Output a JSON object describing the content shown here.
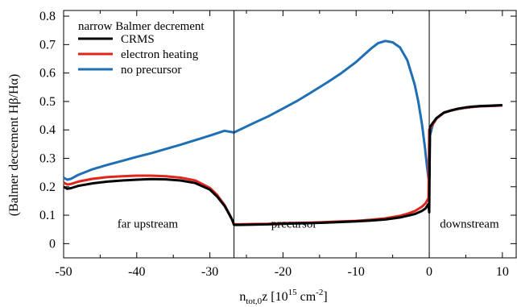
{
  "chart_data": {
    "type": "line",
    "title": "",
    "xlabel": {
      "base": "n",
      "sub": "tot,0",
      "mid": "z [10",
      "sup1": "15",
      "mid2": " cm",
      "sup2": "-2",
      "end": "]"
    },
    "ylabel": "(Balmer decrement Hβ/Hα)",
    "xlim": [
      -50,
      12
    ],
    "ylim": [
      -0.05,
      0.82
    ],
    "xticks": [
      -50,
      -40,
      -30,
      -20,
      -10,
      0,
      10
    ],
    "yticks": [
      0,
      0.1,
      0.2,
      0.3,
      0.4,
      0.5,
      0.6,
      0.7,
      0.8
    ],
    "xtick_labels": [
      "-50",
      "-40",
      "-30",
      "-20",
      "-10",
      "0",
      "10"
    ],
    "ytick_labels": [
      "0",
      "0.1",
      "0.2",
      "0.3",
      "0.4",
      "0.5",
      "0.6",
      "0.7",
      "0.8"
    ],
    "legend": {
      "title": "narrow Balmer decrement",
      "placement": "top-left"
    },
    "vlines": [
      -26.7,
      0
    ],
    "regions": [
      {
        "label": "far upstream",
        "x": -38.5,
        "y": 0.07
      },
      {
        "label": "precursor",
        "x": -18.5,
        "y": 0.07
      },
      {
        "label": "downstream",
        "x": 5.5,
        "y": 0.07
      }
    ],
    "series": [
      {
        "name": "no precursor",
        "color": "#1f6fb4",
        "x": [
          -50,
          -49.5,
          -49,
          -48,
          -46,
          -44,
          -42,
          -40,
          -38,
          -36,
          -34,
          -32,
          -30,
          -28,
          -26.7,
          -24,
          -22,
          -20,
          -18,
          -16,
          -14,
          -12,
          -10,
          -8,
          -7,
          -6,
          -5,
          -4,
          -3,
          -2,
          -1.5,
          -1,
          -0.6,
          -0.3,
          -0.1,
          0,
          0.1,
          0.5,
          1,
          2,
          3,
          4,
          5,
          6,
          7,
          8,
          9,
          10
        ],
        "y": [
          0.232,
          0.225,
          0.228,
          0.242,
          0.262,
          0.277,
          0.291,
          0.305,
          0.318,
          0.333,
          0.348,
          0.364,
          0.38,
          0.397,
          0.391,
          0.424,
          0.448,
          0.475,
          0.503,
          0.534,
          0.566,
          0.6,
          0.639,
          0.685,
          0.705,
          0.713,
          0.708,
          0.69,
          0.645,
          0.56,
          0.5,
          0.42,
          0.34,
          0.27,
          0.23,
          0.215,
          0.38,
          0.42,
          0.44,
          0.46,
          0.468,
          0.474,
          0.478,
          0.481,
          0.483,
          0.484,
          0.485,
          0.486
        ]
      },
      {
        "name": "electron heating",
        "color": "#e0251b",
        "x": [
          -50,
          -49.5,
          -49,
          -48,
          -46,
          -44,
          -42,
          -40,
          -38,
          -36,
          -34,
          -32,
          -30,
          -29,
          -28,
          -27.5,
          -27,
          -26.7,
          -26,
          -24,
          -22,
          -20,
          -18,
          -16,
          -14,
          -12,
          -10,
          -8,
          -6,
          -4,
          -3,
          -2,
          -1,
          -0.5,
          -0.1,
          0,
          0.1,
          0.5,
          1,
          2,
          3,
          4,
          5,
          6,
          7,
          8,
          9,
          10
        ],
        "y": [
          0.215,
          0.208,
          0.21,
          0.218,
          0.228,
          0.234,
          0.237,
          0.239,
          0.239,
          0.237,
          0.232,
          0.222,
          0.196,
          0.171,
          0.136,
          0.112,
          0.087,
          0.068,
          0.068,
          0.069,
          0.07,
          0.072,
          0.073,
          0.074,
          0.076,
          0.078,
          0.08,
          0.084,
          0.089,
          0.098,
          0.105,
          0.114,
          0.13,
          0.142,
          0.16,
          0.4,
          0.405,
          0.42,
          0.44,
          0.46,
          0.468,
          0.474,
          0.478,
          0.481,
          0.483,
          0.484,
          0.485,
          0.486
        ]
      },
      {
        "name": "CRMS",
        "color": "#000000",
        "x": [
          -50,
          -49.5,
          -49,
          -48,
          -46,
          -44,
          -42,
          -40,
          -38,
          -36,
          -34,
          -32,
          -30,
          -29,
          -28,
          -27.5,
          -27,
          -26.7,
          -26,
          -24,
          -22,
          -20,
          -18,
          -16,
          -14,
          -12,
          -10,
          -8,
          -6,
          -4,
          -3,
          -2,
          -1,
          -0.5,
          -0.1,
          0,
          0.1,
          0.5,
          1,
          2,
          3,
          4,
          5,
          6,
          7,
          8,
          9,
          10
        ],
        "y": [
          0.2,
          0.193,
          0.195,
          0.203,
          0.212,
          0.218,
          0.222,
          0.225,
          0.227,
          0.226,
          0.222,
          0.213,
          0.19,
          0.165,
          0.133,
          0.11,
          0.086,
          0.066,
          0.066,
          0.067,
          0.068,
          0.07,
          0.071,
          0.072,
          0.074,
          0.076,
          0.078,
          0.081,
          0.085,
          0.092,
          0.098,
          0.104,
          0.115,
          0.124,
          0.14,
          0.11,
          0.41,
          0.425,
          0.442,
          0.461,
          0.469,
          0.475,
          0.479,
          0.482,
          0.484,
          0.485,
          0.486,
          0.487
        ]
      }
    ]
  },
  "legend_items": [
    {
      "label": "CRMS",
      "color": "#000000"
    },
    {
      "label": "electron heating",
      "color": "#e0251b"
    },
    {
      "label": "no precursor",
      "color": "#1f6fb4"
    }
  ]
}
